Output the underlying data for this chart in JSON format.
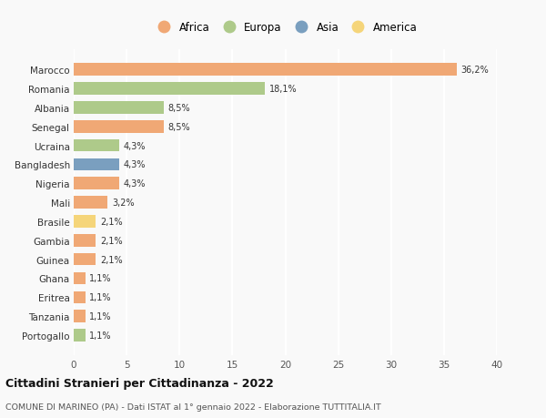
{
  "categories": [
    "Marocco",
    "Romania",
    "Albania",
    "Senegal",
    "Ucraina",
    "Bangladesh",
    "Nigeria",
    "Mali",
    "Brasile",
    "Gambia",
    "Guinea",
    "Ghana",
    "Eritrea",
    "Tanzania",
    "Portogallo"
  ],
  "values": [
    36.2,
    18.1,
    8.5,
    8.5,
    4.3,
    4.3,
    4.3,
    3.2,
    2.1,
    2.1,
    2.1,
    1.1,
    1.1,
    1.1,
    1.1
  ],
  "labels": [
    "36,2%",
    "18,1%",
    "8,5%",
    "8,5%",
    "4,3%",
    "4,3%",
    "4,3%",
    "3,2%",
    "2,1%",
    "2,1%",
    "2,1%",
    "1,1%",
    "1,1%",
    "1,1%",
    "1,1%"
  ],
  "colors": [
    "#F0A875",
    "#AECA8A",
    "#AECA8A",
    "#F0A875",
    "#AECA8A",
    "#7A9FBF",
    "#F0A875",
    "#F0A875",
    "#F5D57A",
    "#F0A875",
    "#F0A875",
    "#F0A875",
    "#F0A875",
    "#F0A875",
    "#AECA8A"
  ],
  "legend": {
    "Africa": "#F0A875",
    "Europa": "#AECA8A",
    "Asia": "#7A9FBF",
    "America": "#F5D57A"
  },
  "xlim": [
    0,
    40
  ],
  "xticks": [
    0,
    5,
    10,
    15,
    20,
    25,
    30,
    35,
    40
  ],
  "title": "Cittadini Stranieri per Cittadinanza - 2022",
  "subtitle": "COMUNE DI MARINEO (PA) - Dati ISTAT al 1° gennaio 2022 - Elaborazione TUTTITALIA.IT",
  "background_color": "#f9f9f9",
  "grid_color": "#ffffff"
}
